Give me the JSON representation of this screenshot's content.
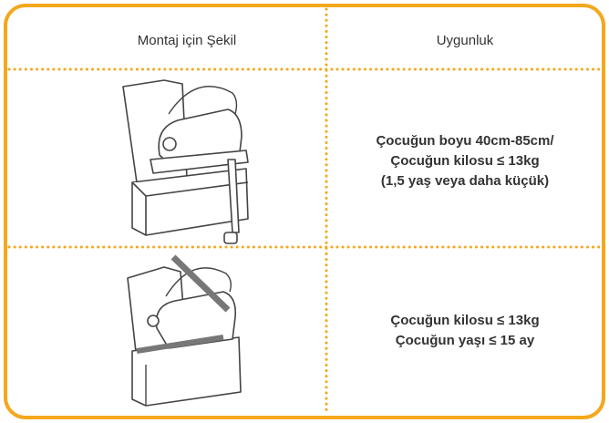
{
  "header": {
    "columns": [
      "Montaj için Şekil",
      "Uygunluk"
    ]
  },
  "table": {
    "rows": [
      {
        "suitability": [
          "Çocuğun boyu 40cm-85cm/",
          "Çocuğun kilosu ≤ 13kg",
          "(1,5 yaş veya daha küçük)"
        ]
      },
      {
        "suitability": [
          "Çocuğun kilosu ≤ 13kg",
          "Çocuğun yaşı ≤ 15 ay"
        ]
      }
    ]
  }
}
